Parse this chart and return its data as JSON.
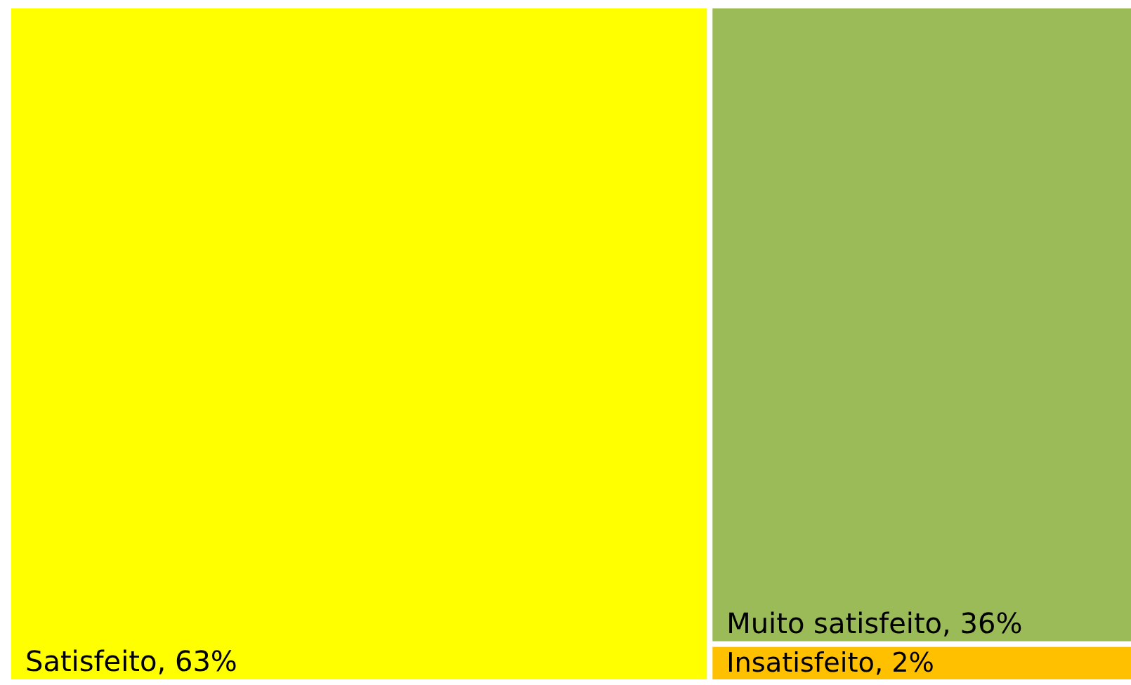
{
  "chart_data": {
    "type": "other",
    "categories": [
      "Satisfeito",
      "Muito satisfeito",
      "Insatisfeito"
    ],
    "values": [
      63,
      36,
      2
    ],
    "value_labels": [
      ", 63%",
      ", 36%",
      ", 2%"
    ],
    "colors": [
      "#ffff00",
      "#9bbb59",
      "#ffc000"
    ]
  }
}
